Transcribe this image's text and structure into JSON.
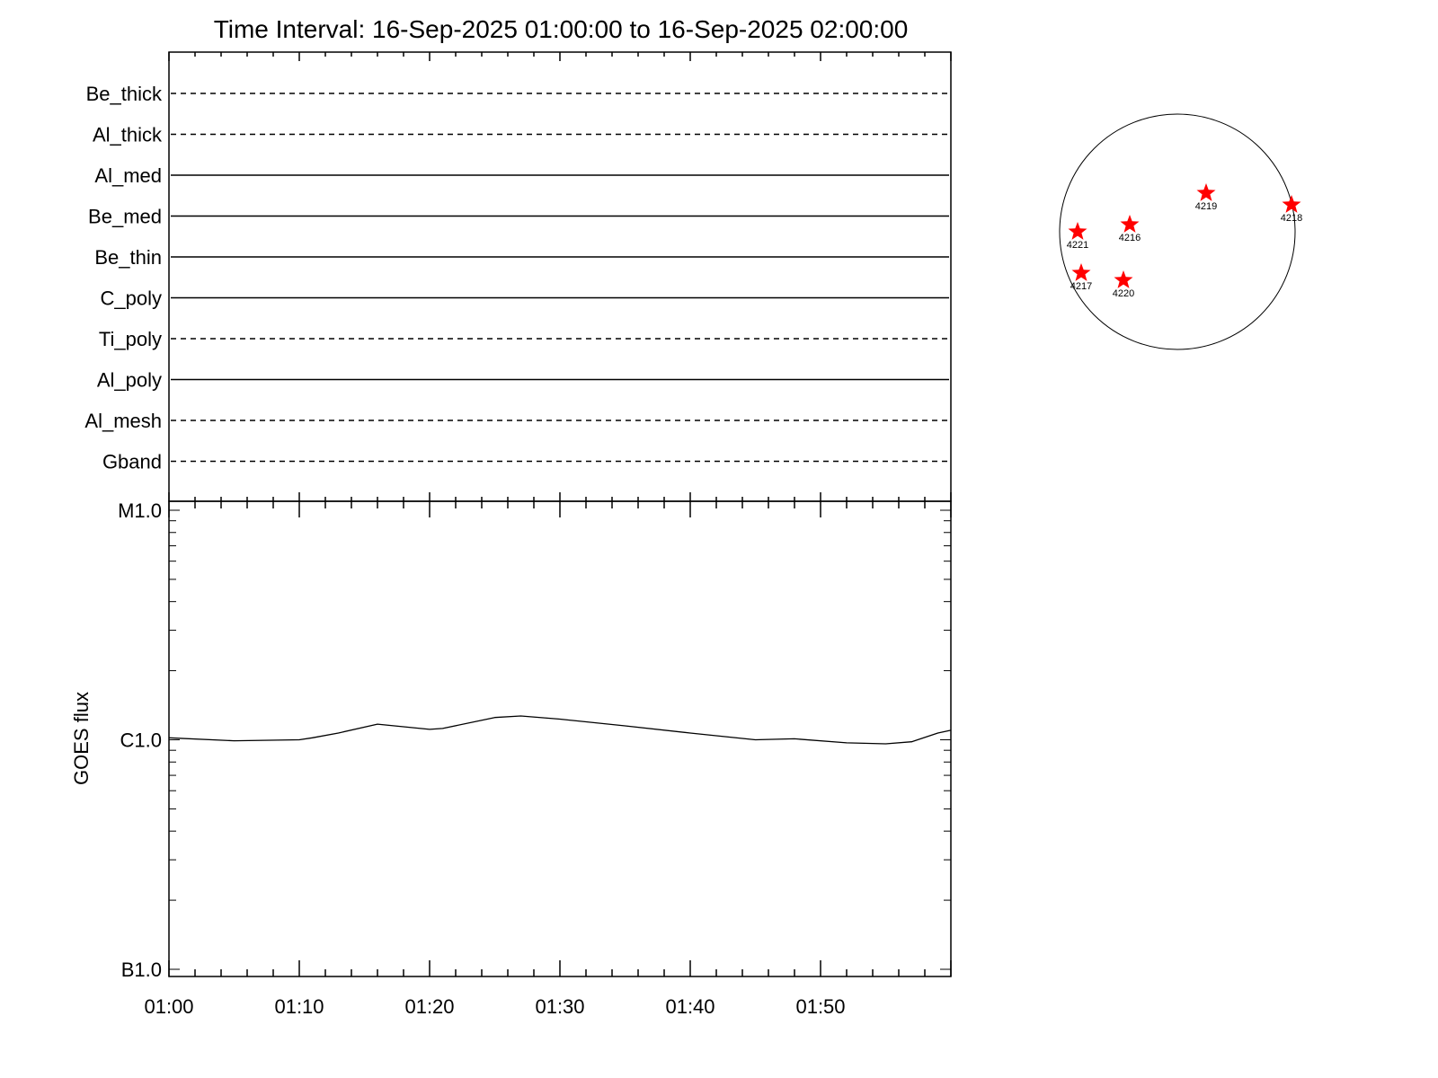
{
  "chart_data": [
    {
      "type": "table",
      "title": "Time Interval: 16-Sep-2025 01:00:00 to 16-Sep-2025 02:00:00",
      "rows": [
        {
          "label": "Be_thick",
          "style": "dashed"
        },
        {
          "label": "Al_thick",
          "style": "dashed"
        },
        {
          "label": "Al_med",
          "style": "solid"
        },
        {
          "label": "Be_med",
          "style": "solid"
        },
        {
          "label": "Be_thin",
          "style": "solid"
        },
        {
          "label": "C_poly",
          "style": "solid"
        },
        {
          "label": "Ti_poly",
          "style": "dashed"
        },
        {
          "label": "Al_poly",
          "style": "solid"
        },
        {
          "label": "Al_mesh",
          "style": "dashed"
        },
        {
          "label": "Gband",
          "style": "dashed"
        }
      ]
    },
    {
      "type": "line",
      "ylabel": "GOES flux",
      "xlabel": "",
      "y_scale": "log",
      "ylim": [
        1e-07,
        1e-05
      ],
      "y_ticks": [
        {
          "value": 1e-05,
          "label": "M1.0"
        },
        {
          "value": 1e-06,
          "label": "C1.0"
        },
        {
          "value": 1e-07,
          "label": "B1.0"
        }
      ],
      "x_tick_labels": [
        "01:00",
        "01:10",
        "01:20",
        "01:30",
        "01:40",
        "01:50"
      ],
      "xlim": [
        "01:00",
        "02:00"
      ],
      "series": [
        {
          "color": "#000000",
          "x": [
            "01:00",
            "01:05",
            "01:10",
            "01:11",
            "01:13",
            "01:16",
            "01:20",
            "01:21",
            "01:25",
            "01:27",
            "01:30",
            "01:35",
            "01:40",
            "01:45",
            "01:48",
            "01:52",
            "01:55",
            "01:57",
            "01:59",
            "02:00"
          ],
          "y": [
            1.02e-06,
            9.9e-07,
            1e-06,
            1.02e-06,
            1.07e-06,
            1.17e-06,
            1.11e-06,
            1.12e-06,
            1.25e-06,
            1.27e-06,
            1.23e-06,
            1.15e-06,
            1.07e-06,
            1e-06,
            1.01e-06,
            9.7e-07,
            9.6e-07,
            9.8e-07,
            1.07e-06,
            1.1e-06
          ]
        }
      ]
    },
    {
      "type": "scatter",
      "marker": "star",
      "marker_color": "#ff0000",
      "active_regions": [
        "4219",
        "4218",
        "4221",
        "4216",
        "4217",
        "4220"
      ]
    }
  ]
}
